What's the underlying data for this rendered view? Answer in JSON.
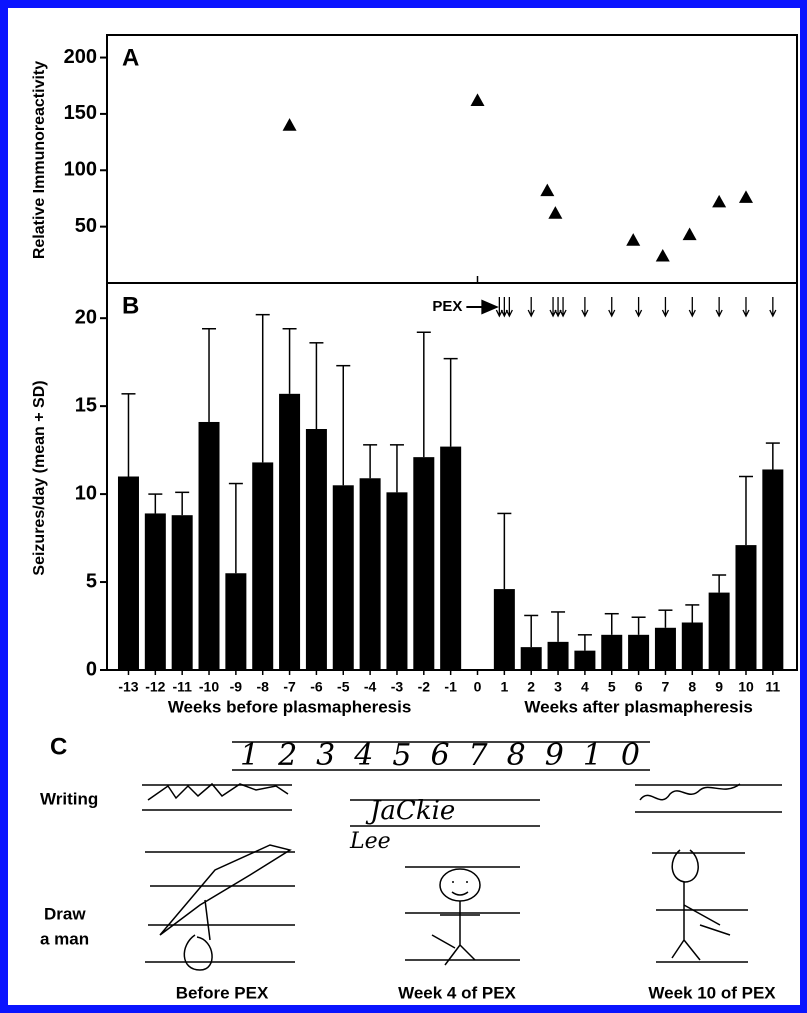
{
  "chart_data": [
    {
      "type": "scatter",
      "panel_label": "A",
      "y_label": "Relative Immunoreactivity",
      "x": [
        -7,
        0,
        2.6,
        2.9,
        5.8,
        6.9,
        7.9,
        9,
        10
      ],
      "values": [
        140,
        162,
        82,
        62,
        38,
        24,
        43,
        72,
        76
      ],
      "marker": "triangle",
      "color": "#000000",
      "xlim": [
        -13.8,
        11.9
      ],
      "xticks": [
        0
      ],
      "ylim": [
        0,
        220
      ],
      "yticks": [
        50,
        100,
        150,
        200
      ]
    },
    {
      "type": "bar",
      "panel_label": "B",
      "y_label": "Seizures/day (mean + SD)",
      "x_labels": [
        "Weeks before plasmapheresis",
        "Weeks after plasmapheresis"
      ],
      "x": [
        -13,
        -12,
        -11,
        -10,
        -9,
        -8,
        -7,
        -6,
        -5,
        -4,
        -3,
        -2,
        -1,
        1,
        2,
        3,
        4,
        5,
        6,
        7,
        8,
        9,
        10,
        11
      ],
      "values": [
        11.0,
        8.9,
        8.8,
        14.1,
        5.5,
        11.8,
        15.7,
        13.7,
        10.5,
        10.9,
        10.1,
        12.1,
        12.7,
        4.6,
        1.3,
        1.6,
        1.1,
        2.0,
        2.0,
        2.4,
        2.7,
        4.4,
        7.1,
        11.4
      ],
      "errors": [
        4.7,
        1.1,
        1.3,
        5.3,
        5.1,
        8.4,
        3.7,
        4.9,
        6.8,
        1.9,
        2.7,
        7.1,
        5.0,
        4.3,
        1.8,
        1.7,
        0.9,
        1.2,
        1.0,
        1.0,
        1.0,
        1.0,
        3.9,
        1.5
      ],
      "color": "#000000",
      "xlim": [
        -13.8,
        11.9
      ],
      "xticks": [
        -13,
        -12,
        -11,
        -10,
        -9,
        -8,
        -7,
        -6,
        -5,
        -4,
        -3,
        -2,
        -1,
        0,
        1,
        2,
        3,
        4,
        5,
        6,
        7,
        8,
        9,
        10,
        11
      ],
      "ylim": [
        0,
        22
      ],
      "yticks": [
        0,
        5,
        10,
        15,
        20
      ],
      "pex": {
        "label": "PEX",
        "weeks": [
          1,
          2,
          3,
          4,
          5,
          6,
          7,
          8,
          9,
          10,
          11
        ],
        "counts": [
          3,
          1,
          3,
          1,
          1,
          1,
          1,
          1,
          1,
          1,
          1
        ]
      }
    }
  ],
  "panel_c": {
    "label": "C",
    "row_labels": [
      "Writing",
      "Draw",
      "a man"
    ],
    "handwriting": [
      "12345678910",
      "JaCkie",
      "Lee"
    ],
    "captions": [
      "Before PEX",
      "Week 4 of PEX",
      "Week 10 of PEX"
    ]
  }
}
